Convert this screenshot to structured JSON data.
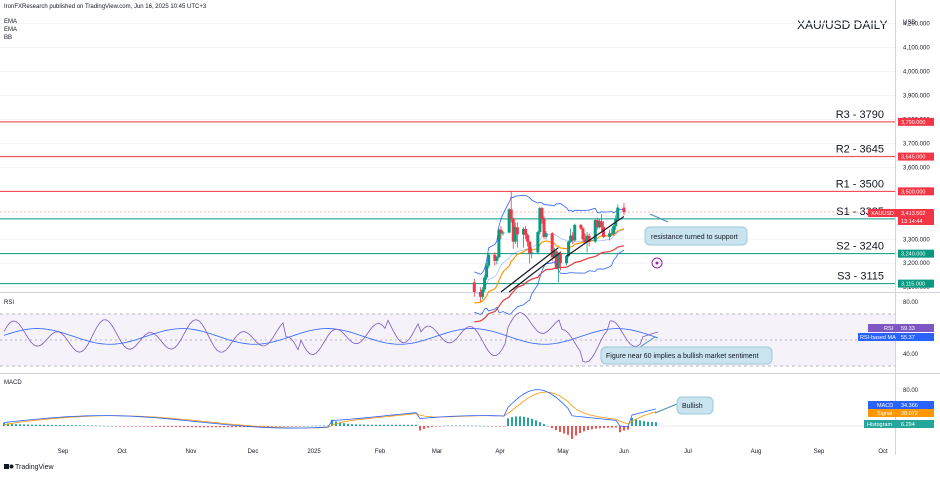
{
  "header": {
    "publisher_line": "IronFXResearch published on TradingView.com, Jun 16, 2025 10:45 UTC+3",
    "indicators": [
      "EMA",
      "EMA",
      "BB"
    ],
    "chart_title": "XAU/USD DAILY",
    "currency": "USD"
  },
  "footer": {
    "brand": "TradingView"
  },
  "colors": {
    "resistance": "#f23645",
    "support": "#089981",
    "candle_up": "#089981",
    "candle_down": "#f23645",
    "ema_fast": "#e53935",
    "ema_slow": "#ff9800",
    "bb": "#2962ff",
    "rsi": "#7e57c2",
    "rsi_ma": "#2962ff",
    "macd": "#2962ff",
    "signal": "#ff9800",
    "annotation_bg": "#c9e4ef"
  },
  "chart_data": [
    {
      "type": "candlestick",
      "title": "XAU/USD DAILY",
      "y_ticks": [
        4200,
        4100,
        4000,
        3900,
        3800,
        3700,
        3600,
        3500,
        3400,
        3300,
        3200,
        3100
      ],
      "y_tick_labels": [
        "4,200.000",
        "4,100.000",
        "4,000.000",
        "3,900.000",
        "3,800.000",
        "3,700.000",
        "3,600.000",
        "3,500.000",
        "3,400.000",
        "3,300.000",
        "3,200.000",
        "3,100.000"
      ],
      "ylim": [
        3080,
        4240
      ],
      "levels": [
        {
          "name": "R3 - 3790",
          "value": 3790,
          "label": "3,790.000",
          "kind": "resistance"
        },
        {
          "name": "R2 - 3645",
          "value": 3645,
          "label": "3,645.000",
          "kind": "resistance"
        },
        {
          "name": "R1 - 3500",
          "value": 3500,
          "label": "3,500.000",
          "kind": "resistance"
        },
        {
          "name": "S1 - 3385",
          "value": 3385,
          "label": "3,385.000",
          "kind": "support"
        },
        {
          "name": "S2 - 3240",
          "value": 3240,
          "label": "3,240.000",
          "kind": "support"
        },
        {
          "name": "S3 - 3115",
          "value": 3115,
          "label": "3,115.000",
          "kind": "support"
        }
      ],
      "price_tag": {
        "symbol": "XAUUSD",
        "price": "3,413.502",
        "countdown": "13:14:44",
        "value": 3413.5
      },
      "annotation": "resistance turned to support",
      "candles": [
        {
          "date": "2025-04-04",
          "o": 3120,
          "h": 3135,
          "l": 3060,
          "c": 3080
        },
        {
          "date": "2025-04-07",
          "o": 3080,
          "h": 3100,
          "l": 3040,
          "c": 3060
        },
        {
          "date": "2025-04-08",
          "o": 3060,
          "h": 3100,
          "l": 3050,
          "c": 3090
        },
        {
          "date": "2025-04-09",
          "o": 3090,
          "h": 3150,
          "l": 3080,
          "c": 3140
        },
        {
          "date": "2025-04-10",
          "o": 3140,
          "h": 3200,
          "l": 3130,
          "c": 3190
        },
        {
          "date": "2025-04-11",
          "o": 3190,
          "h": 3240,
          "l": 3180,
          "c": 3235
        },
        {
          "date": "2025-04-14",
          "o": 3235,
          "h": 3245,
          "l": 3190,
          "c": 3210
        },
        {
          "date": "2025-04-15",
          "o": 3210,
          "h": 3230,
          "l": 3195,
          "c": 3225
        },
        {
          "date": "2025-04-16",
          "o": 3225,
          "h": 3345,
          "l": 3220,
          "c": 3340
        },
        {
          "date": "2025-04-17",
          "o": 3340,
          "h": 3355,
          "l": 3300,
          "c": 3325
        },
        {
          "date": "2025-04-18",
          "o": 3325,
          "h": 3335,
          "l": 3315,
          "c": 3328
        },
        {
          "date": "2025-04-21",
          "o": 3328,
          "h": 3430,
          "l": 3325,
          "c": 3425
        },
        {
          "date": "2025-04-22",
          "o": 3425,
          "h": 3500,
          "l": 3370,
          "c": 3385
        },
        {
          "date": "2025-04-23",
          "o": 3385,
          "h": 3390,
          "l": 3260,
          "c": 3290
        },
        {
          "date": "2025-04-24",
          "o": 3290,
          "h": 3370,
          "l": 3280,
          "c": 3350
        },
        {
          "date": "2025-04-25",
          "o": 3350,
          "h": 3370,
          "l": 3265,
          "c": 3320
        },
        {
          "date": "2025-04-28",
          "o": 3320,
          "h": 3350,
          "l": 3265,
          "c": 3343
        },
        {
          "date": "2025-04-29",
          "o": 3343,
          "h": 3355,
          "l": 3300,
          "c": 3318
        },
        {
          "date": "2025-04-30",
          "o": 3318,
          "h": 3325,
          "l": 3270,
          "c": 3290
        },
        {
          "date": "2025-05-01",
          "o": 3290,
          "h": 3295,
          "l": 3200,
          "c": 3240
        },
        {
          "date": "2025-05-02",
          "o": 3240,
          "h": 3265,
          "l": 3220,
          "c": 3245
        },
        {
          "date": "2025-05-05",
          "o": 3245,
          "h": 3335,
          "l": 3240,
          "c": 3330
        },
        {
          "date": "2025-05-06",
          "o": 3330,
          "h": 3435,
          "l": 3320,
          "c": 3430
        },
        {
          "date": "2025-05-07",
          "o": 3430,
          "h": 3435,
          "l": 3365,
          "c": 3385
        },
        {
          "date": "2025-05-08",
          "o": 3385,
          "h": 3395,
          "l": 3300,
          "c": 3310
        },
        {
          "date": "2025-05-09",
          "o": 3310,
          "h": 3335,
          "l": 3300,
          "c": 3325
        },
        {
          "date": "2025-05-12",
          "o": 3325,
          "h": 3330,
          "l": 3210,
          "c": 3225
        },
        {
          "date": "2025-05-13",
          "o": 3225,
          "h": 3265,
          "l": 3220,
          "c": 3250
        },
        {
          "date": "2025-05-14",
          "o": 3250,
          "h": 3255,
          "l": 3175,
          "c": 3180
        },
        {
          "date": "2025-05-15",
          "o": 3180,
          "h": 3245,
          "l": 3120,
          "c": 3240
        },
        {
          "date": "2025-05-16",
          "o": 3240,
          "h": 3250,
          "l": 3170,
          "c": 3200
        },
        {
          "date": "2025-05-19",
          "o": 3200,
          "h": 3235,
          "l": 3190,
          "c": 3230
        },
        {
          "date": "2025-05-20",
          "o": 3230,
          "h": 3295,
          "l": 3225,
          "c": 3290
        },
        {
          "date": "2025-05-21",
          "o": 3290,
          "h": 3345,
          "l": 3285,
          "c": 3315
        },
        {
          "date": "2025-05-22",
          "o": 3315,
          "h": 3330,
          "l": 3280,
          "c": 3295
        },
        {
          "date": "2025-05-23",
          "o": 3295,
          "h": 3365,
          "l": 3290,
          "c": 3360
        },
        {
          "date": "2025-05-26",
          "o": 3360,
          "h": 3365,
          "l": 3340,
          "c": 3345
        },
        {
          "date": "2025-05-27",
          "o": 3345,
          "h": 3350,
          "l": 3290,
          "c": 3300
        },
        {
          "date": "2025-05-28",
          "o": 3300,
          "h": 3325,
          "l": 3285,
          "c": 3290
        },
        {
          "date": "2025-05-29",
          "o": 3290,
          "h": 3330,
          "l": 3245,
          "c": 3315
        },
        {
          "date": "2025-05-30",
          "o": 3315,
          "h": 3325,
          "l": 3270,
          "c": 3290
        },
        {
          "date": "2025-06-02",
          "o": 3290,
          "h": 3385,
          "l": 3285,
          "c": 3380
        },
        {
          "date": "2025-06-03",
          "o": 3380,
          "h": 3390,
          "l": 3340,
          "c": 3350
        },
        {
          "date": "2025-06-04",
          "o": 3350,
          "h": 3385,
          "l": 3345,
          "c": 3375
        },
        {
          "date": "2025-06-05",
          "o": 3375,
          "h": 3405,
          "l": 3335,
          "c": 3352
        },
        {
          "date": "2025-06-06",
          "o": 3352,
          "h": 3375,
          "l": 3305,
          "c": 3310
        },
        {
          "date": "2025-06-09",
          "o": 3310,
          "h": 3340,
          "l": 3295,
          "c": 3325
        },
        {
          "date": "2025-06-10",
          "o": 3325,
          "h": 3345,
          "l": 3315,
          "c": 3322
        },
        {
          "date": "2025-06-11",
          "o": 3322,
          "h": 3360,
          "l": 3315,
          "c": 3355
        },
        {
          "date": "2025-06-12",
          "o": 3355,
          "h": 3400,
          "l": 3340,
          "c": 3385
        },
        {
          "date": "2025-06-13",
          "o": 3385,
          "h": 3445,
          "l": 3380,
          "c": 3432
        },
        {
          "date": "2025-06-16",
          "o": 3432,
          "h": 3452,
          "l": 3400,
          "c": 3413.5
        }
      ]
    },
    {
      "type": "line",
      "title": "RSI",
      "y_ticks": [
        80,
        40
      ],
      "y_tick_labels": [
        "80.00",
        "40.00"
      ],
      "ylim": [
        28,
        90
      ],
      "bands": [
        70,
        50,
        30
      ],
      "series": [
        {
          "name": "RSI",
          "label": "59.33"
        },
        {
          "name": "RSI-based MA",
          "label": "55.37"
        }
      ],
      "annotation": "Figure near 60  implies a bullish market sentiment"
    },
    {
      "type": "line+histogram",
      "title": "MACD",
      "y_ticks": [
        80
      ],
      "y_tick_labels": [
        "80.00"
      ],
      "ylim": [
        -30,
        100
      ],
      "series": [
        {
          "name": "MACD",
          "label": "34.366"
        },
        {
          "name": "Signal",
          "label": "28.072"
        },
        {
          "name": "Histogram",
          "label": "6.294"
        }
      ],
      "annotation": "Bullish"
    }
  ],
  "x_axis": {
    "labels": [
      "Sep",
      "Oct",
      "Nov",
      "Dec",
      "2025",
      "Feb",
      "Mar",
      "Apr",
      "May",
      "Jun",
      "Jul",
      "Aug",
      "Sep",
      "Oct"
    ]
  }
}
